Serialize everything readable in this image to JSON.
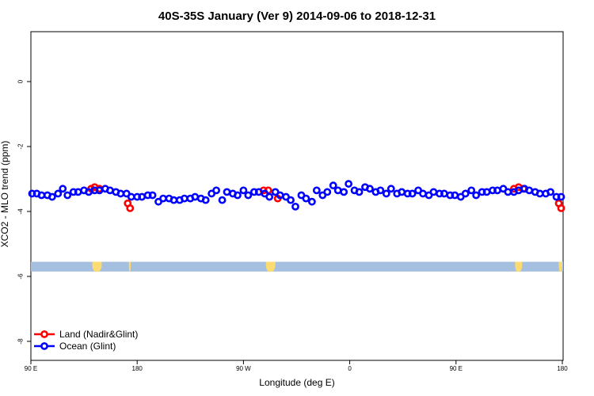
{
  "chart_data": {
    "type": "scatter",
    "title": "40S-35S January (Ver 9)   2014-09-06 to 2018-12-31",
    "xlabel": "Longitude (deg E)",
    "ylabel": "XCO2 - MLO trend (ppm)",
    "xlim": [
      90,
      540
    ],
    "ylim": [
      -9,
      1.6
    ],
    "x_ticks": [
      {
        "value": 90,
        "label": "90 E"
      },
      {
        "value": 180,
        "label": "180"
      },
      {
        "value": 270,
        "label": "90 W"
      },
      {
        "value": 360,
        "label": "0"
      },
      {
        "value": 450,
        "label": "90 E"
      },
      {
        "value": 540,
        "label": "180"
      }
    ],
    "y_ticks": [
      {
        "value": 0,
        "label": "0"
      },
      {
        "value": -2,
        "label": "-2"
      },
      {
        "value": -4,
        "label": "-4"
      },
      {
        "value": -6,
        "label": "-6"
      },
      {
        "value": -8,
        "label": "-8"
      }
    ],
    "legend_position": "bottom-left",
    "series": [
      {
        "name": "Land (Nadir&Glint)",
        "color": "#ff0000",
        "points": [
          [
            141,
            -3.3
          ],
          [
            144,
            -3.25
          ],
          [
            148,
            -3.3
          ],
          [
            172,
            -3.75
          ],
          [
            174,
            -3.9
          ],
          [
            287,
            -3.35
          ],
          [
            291,
            -3.35
          ],
          [
            299,
            -3.6
          ],
          [
            499,
            -3.3
          ],
          [
            503,
            -3.25
          ],
          [
            507,
            -3.3
          ],
          [
            537,
            -3.75
          ],
          [
            539,
            -3.9
          ]
        ]
      },
      {
        "name": "Ocean (Glint)",
        "color": "#0000ff",
        "points": [
          [
            91,
            -3.45
          ],
          [
            95,
            -3.45
          ],
          [
            99,
            -3.5
          ],
          [
            104,
            -3.5
          ],
          [
            108,
            -3.55
          ],
          [
            113,
            -3.45
          ],
          [
            117,
            -3.3
          ],
          [
            121,
            -3.5
          ],
          [
            126,
            -3.4
          ],
          [
            130,
            -3.4
          ],
          [
            135,
            -3.35
          ],
          [
            139,
            -3.4
          ],
          [
            144,
            -3.35
          ],
          [
            148,
            -3.35
          ],
          [
            153,
            -3.3
          ],
          [
            157,
            -3.35
          ],
          [
            162,
            -3.4
          ],
          [
            166,
            -3.45
          ],
          [
            171,
            -3.45
          ],
          [
            175,
            -3.55
          ],
          [
            180,
            -3.55
          ],
          [
            184,
            -3.55
          ],
          [
            189,
            -3.5
          ],
          [
            193,
            -3.5
          ],
          [
            198,
            -3.7
          ],
          [
            202,
            -3.6
          ],
          [
            207,
            -3.6
          ],
          [
            211,
            -3.65
          ],
          [
            216,
            -3.65
          ],
          [
            220,
            -3.6
          ],
          [
            225,
            -3.6
          ],
          [
            229,
            -3.55
          ],
          [
            234,
            -3.6
          ],
          [
            238,
            -3.65
          ],
          [
            243,
            -3.45
          ],
          [
            247,
            -3.35
          ],
          [
            252,
            -3.65
          ],
          [
            256,
            -3.4
          ],
          [
            261,
            -3.45
          ],
          [
            265,
            -3.5
          ],
          [
            270,
            -3.35
          ],
          [
            274,
            -3.5
          ],
          [
            279,
            -3.4
          ],
          [
            283,
            -3.4
          ],
          [
            288,
            -3.45
          ],
          [
            292,
            -3.55
          ],
          [
            297,
            -3.4
          ],
          [
            301,
            -3.5
          ],
          [
            306,
            -3.55
          ],
          [
            310,
            -3.65
          ],
          [
            314,
            -3.85
          ],
          [
            319,
            -3.5
          ],
          [
            323,
            -3.6
          ],
          [
            328,
            -3.7
          ],
          [
            332,
            -3.35
          ],
          [
            337,
            -3.5
          ],
          [
            341,
            -3.4
          ],
          [
            346,
            -3.2
          ],
          [
            350,
            -3.35
          ],
          [
            355,
            -3.4
          ],
          [
            359,
            -3.15
          ],
          [
            364,
            -3.35
          ],
          [
            368,
            -3.4
          ],
          [
            373,
            -3.25
          ],
          [
            377,
            -3.3
          ],
          [
            382,
            -3.4
          ],
          [
            386,
            -3.35
          ],
          [
            391,
            -3.45
          ],
          [
            395,
            -3.3
          ],
          [
            400,
            -3.45
          ],
          [
            404,
            -3.4
          ],
          [
            409,
            -3.45
          ],
          [
            413,
            -3.45
          ],
          [
            418,
            -3.35
          ],
          [
            422,
            -3.45
          ],
          [
            427,
            -3.5
          ],
          [
            431,
            -3.4
          ],
          [
            436,
            -3.45
          ],
          [
            440,
            -3.45
          ],
          [
            445,
            -3.5
          ],
          [
            449,
            -3.5
          ],
          [
            454,
            -3.55
          ],
          [
            458,
            -3.45
          ],
          [
            463,
            -3.35
          ],
          [
            467,
            -3.5
          ],
          [
            472,
            -3.4
          ],
          [
            476,
            -3.4
          ],
          [
            481,
            -3.35
          ],
          [
            485,
            -3.35
          ],
          [
            490,
            -3.3
          ],
          [
            494,
            -3.4
          ],
          [
            499,
            -3.4
          ],
          [
            503,
            -3.35
          ],
          [
            508,
            -3.3
          ],
          [
            512,
            -3.35
          ],
          [
            517,
            -3.4
          ],
          [
            521,
            -3.45
          ],
          [
            526,
            -3.45
          ],
          [
            530,
            -3.4
          ],
          [
            535,
            -3.55
          ],
          [
            539,
            -3.55
          ]
        ]
      }
    ],
    "land_band": {
      "y_top": -5.55,
      "y_bottom": -5.85,
      "band_color": "#a4bfdf",
      "land_color": "#fbdc73",
      "land_spans": [
        [
          142,
          150
        ],
        [
          173,
          174.5
        ],
        [
          289,
          297
        ],
        [
          500,
          506
        ],
        [
          537,
          540
        ]
      ]
    }
  }
}
